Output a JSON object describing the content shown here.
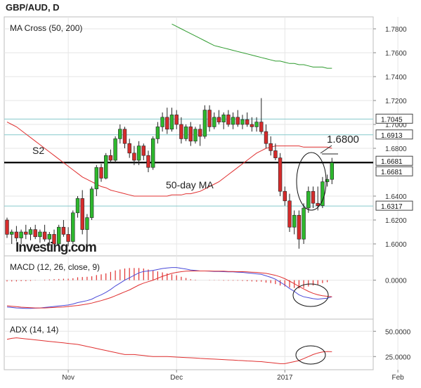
{
  "header": {
    "title": "GBP/AUD, D"
  },
  "colors": {
    "up": "#2db82d",
    "down": "#d62b2b",
    "ma200": "#2e9b2e",
    "ma50": "#e03030",
    "macd_line": "#4a4ad8",
    "signal_line": "#e03030",
    "level_line": "#86c9cc",
    "s2_line": "#000000",
    "grid": "#e6e6e6"
  },
  "x_axis": {
    "labels": [
      {
        "text": "Nov",
        "bar": 13
      },
      {
        "text": "Dec",
        "bar": 36
      },
      {
        "text": "2017",
        "bar": 59
      },
      {
        "text": "Feb",
        "bar": 83
      }
    ]
  },
  "watermark": "Investing.com",
  "annotations": {
    "s2": "S2",
    "target": "1.6800",
    "ma_label": "50-day MA"
  },
  "chart_data": [
    {
      "type": "candlestick",
      "title": "MA Cross (50, 200)",
      "ylim": [
        1.59,
        1.79
      ],
      "y_ticks": [
        "1.7800",
        "1.7600",
        "1.7400",
        "1.7200",
        "1.7000",
        "1.6800",
        "1.6400",
        "1.6200",
        "1.6000"
      ],
      "price_tags": [
        "1.7045",
        "1.6913",
        "1.6681",
        "1.6681",
        "1.6317"
      ],
      "levels": {
        "s2": 1.6681,
        "horizontal": [
          1.7045,
          1.6913,
          1.6317
        ]
      },
      "candles": [
        [
          1.62,
          1.622,
          1.605,
          1.608
        ],
        [
          1.608,
          1.612,
          1.6,
          1.61
        ],
        [
          1.61,
          1.615,
          1.602,
          1.605
        ],
        [
          1.605,
          1.612,
          1.6,
          1.61
        ],
        [
          1.61,
          1.616,
          1.604,
          1.608
        ],
        [
          1.608,
          1.614,
          1.603,
          1.612
        ],
        [
          1.612,
          1.616,
          1.604,
          1.606
        ],
        [
          1.606,
          1.612,
          1.601,
          1.61
        ],
        [
          1.61,
          1.616,
          1.602,
          1.604
        ],
        [
          1.604,
          1.61,
          1.6,
          1.608
        ],
        [
          1.608,
          1.612,
          1.598,
          1.6
        ],
        [
          1.6,
          1.616,
          1.598,
          1.614
        ],
        [
          1.614,
          1.62,
          1.606,
          1.608
        ],
        [
          1.608,
          1.614,
          1.598,
          1.602
        ],
        [
          1.602,
          1.628,
          1.6,
          1.626
        ],
        [
          1.626,
          1.64,
          1.622,
          1.638
        ],
        [
          1.638,
          1.645,
          1.608,
          1.612
        ],
        [
          1.612,
          1.625,
          1.598,
          1.622
        ],
        [
          1.622,
          1.648,
          1.62,
          1.646
        ],
        [
          1.646,
          1.666,
          1.64,
          1.664
        ],
        [
          1.664,
          1.667,
          1.652,
          1.655
        ],
        [
          1.655,
          1.676,
          1.654,
          1.674
        ],
        [
          1.674,
          1.679,
          1.668,
          1.67
        ],
        [
          1.67,
          1.69,
          1.668,
          1.688
        ],
        [
          1.688,
          1.7,
          1.684,
          1.696
        ],
        [
          1.696,
          1.698,
          1.68,
          1.684
        ],
        [
          1.684,
          1.688,
          1.672,
          1.676
        ],
        [
          1.676,
          1.682,
          1.666,
          1.67
        ],
        [
          1.67,
          1.686,
          1.666,
          1.682
        ],
        [
          1.682,
          1.684,
          1.67,
          1.674
        ],
        [
          1.674,
          1.678,
          1.66,
          1.664
        ],
        [
          1.664,
          1.69,
          1.662,
          1.688
        ],
        [
          1.688,
          1.702,
          1.684,
          1.698
        ],
        [
          1.698,
          1.71,
          1.694,
          1.706
        ],
        [
          1.706,
          1.714,
          1.692,
          1.696
        ],
        [
          1.696,
          1.714,
          1.694,
          1.708
        ],
        [
          1.708,
          1.712,
          1.696,
          1.7
        ],
        [
          1.7,
          1.706,
          1.684,
          1.688
        ],
        [
          1.688,
          1.7,
          1.686,
          1.698
        ],
        [
          1.698,
          1.702,
          1.682,
          1.686
        ],
        [
          1.686,
          1.698,
          1.684,
          1.696
        ],
        [
          1.696,
          1.7,
          1.682,
          1.69
        ],
        [
          1.69,
          1.716,
          1.688,
          1.712
        ],
        [
          1.712,
          1.716,
          1.694,
          1.698
        ],
        [
          1.698,
          1.71,
          1.696,
          1.706
        ],
        [
          1.706,
          1.712,
          1.7,
          1.702
        ],
        [
          1.702,
          1.71,
          1.696,
          1.708
        ],
        [
          1.708,
          1.712,
          1.698,
          1.7
        ],
        [
          1.7,
          1.71,
          1.696,
          1.706
        ],
        [
          1.706,
          1.712,
          1.698,
          1.7
        ],
        [
          1.7,
          1.708,
          1.696,
          1.704
        ],
        [
          1.704,
          1.71,
          1.698,
          1.7
        ],
        [
          1.7,
          1.706,
          1.694,
          1.698
        ],
        [
          1.698,
          1.706,
          1.694,
          1.702
        ],
        [
          1.702,
          1.722,
          1.692,
          1.694
        ],
        [
          1.694,
          1.7,
          1.68,
          1.684
        ],
        [
          1.684,
          1.69,
          1.674,
          1.678
        ],
        [
          1.678,
          1.684,
          1.67,
          1.672
        ],
        [
          1.672,
          1.676,
          1.64,
          1.644
        ],
        [
          1.644,
          1.648,
          1.632,
          1.636
        ],
        [
          1.636,
          1.642,
          1.61,
          1.614
        ],
        [
          1.614,
          1.628,
          1.608,
          1.624
        ],
        [
          1.624,
          1.628,
          1.596,
          1.604
        ],
        [
          1.604,
          1.634,
          1.6,
          1.63
        ],
        [
          1.63,
          1.648,
          1.626,
          1.644
        ],
        [
          1.644,
          1.648,
          1.63,
          1.634
        ],
        [
          1.634,
          1.648,
          1.628,
          1.632
        ],
        [
          1.632,
          1.656,
          1.63,
          1.652
        ],
        [
          1.652,
          1.658,
          1.648,
          1.654
        ],
        [
          1.654,
          1.672,
          1.65,
          1.668
        ]
      ],
      "ma50": [
        1.702,
        1.7,
        1.698,
        1.695,
        1.692,
        1.689,
        1.686,
        1.683,
        1.68,
        1.677,
        1.674,
        1.671,
        1.668,
        1.665,
        1.662,
        1.659,
        1.656,
        1.654,
        1.652,
        1.65,
        1.648,
        1.647,
        1.645,
        1.644,
        1.643,
        1.642,
        1.641,
        1.64,
        1.64,
        1.64,
        1.64,
        1.64,
        1.64,
        1.64,
        1.64,
        1.641,
        1.641,
        1.641,
        1.642,
        1.642,
        1.643,
        1.644,
        1.646,
        1.648,
        1.65,
        1.652,
        1.655,
        1.658,
        1.661,
        1.664,
        1.667,
        1.67,
        1.673,
        1.676,
        1.678,
        1.68,
        1.681,
        1.682,
        1.682,
        1.682,
        1.682,
        1.682,
        1.682,
        1.681,
        1.681,
        1.681,
        1.681,
        1.681,
        1.681,
        1.68
      ],
      "ma200": {
        "from_bar": 35,
        "values": [
          1.784,
          1.782,
          1.78,
          1.778,
          1.776,
          1.774,
          1.772,
          1.77,
          1.768,
          1.766,
          1.765,
          1.764,
          1.763,
          1.762,
          1.761,
          1.76,
          1.759,
          1.758,
          1.757,
          1.756,
          1.755,
          1.754,
          1.753,
          1.753,
          1.752,
          1.751,
          1.751,
          1.75,
          1.75,
          1.749,
          1.748,
          1.748,
          1.748,
          1.747,
          1.747
        ]
      }
    },
    {
      "type": "line",
      "title": "MACD (12, 26, close, 9)",
      "ylim": [
        -0.016,
        0.01
      ],
      "y_ticks": [
        "0.0000"
      ],
      "series": [
        {
          "values": [
            -0.011,
            -0.0112,
            -0.0114,
            -0.0115,
            -0.0116,
            -0.0116,
            -0.0115,
            -0.0114,
            -0.0112,
            -0.011,
            -0.0108,
            -0.0106,
            -0.0104,
            -0.0102,
            -0.0098,
            -0.0092,
            -0.0088,
            -0.0084,
            -0.0078,
            -0.0068,
            -0.006,
            -0.005,
            -0.0038,
            -0.0024,
            -0.0012,
            0.0,
            0.001,
            0.002,
            0.003,
            0.0036,
            0.0038,
            0.004,
            0.0044,
            0.0048,
            0.005,
            0.0052,
            0.0052,
            0.0049,
            0.0046,
            0.0042,
            0.004,
            0.0038,
            0.0038,
            0.0037,
            0.0036,
            0.0036,
            0.0035,
            0.0034,
            0.0034,
            0.0033,
            0.0032,
            0.003,
            0.0028,
            0.0026,
            0.0024,
            0.0018,
            0.0012,
            0.0004,
            -0.0008,
            -0.002,
            -0.0034,
            -0.0046,
            -0.006,
            -0.0068,
            -0.0072,
            -0.0076,
            -0.0078,
            -0.0076,
            -0.0074,
            -0.0068
          ]
        },
        {
          "values": [
            -0.0105,
            -0.0107,
            -0.0109,
            -0.0111,
            -0.0112,
            -0.0113,
            -0.0114,
            -0.0114,
            -0.0114,
            -0.0113,
            -0.0112,
            -0.0111,
            -0.011,
            -0.0108,
            -0.0106,
            -0.0104,
            -0.0101,
            -0.0098,
            -0.0094,
            -0.0089,
            -0.0084,
            -0.0078,
            -0.0072,
            -0.0064,
            -0.0056,
            -0.0048,
            -0.004,
            -0.003,
            -0.002,
            -0.0012,
            -0.0006,
            0.0,
            0.0008,
            0.0016,
            0.0022,
            0.0028,
            0.0032,
            0.0035,
            0.0037,
            0.0038,
            0.0038,
            0.0038,
            0.0038,
            0.0038,
            0.0037,
            0.0037,
            0.0037,
            0.0036,
            0.0036,
            0.0035,
            0.0035,
            0.0034,
            0.0033,
            0.0032,
            0.003,
            0.0028,
            0.0024,
            0.002,
            0.0014,
            0.0006,
            -0.0004,
            -0.0014,
            -0.0026,
            -0.0036,
            -0.0046,
            -0.0054,
            -0.006,
            -0.0064,
            -0.0066,
            -0.0068
          ]
        }
      ],
      "histogram": [
        -0.0005,
        -0.0005,
        -0.0005,
        -0.0004,
        -0.0004,
        -0.0003,
        -0.0001,
        0.0,
        0.0002,
        0.0003,
        0.0004,
        0.0005,
        0.0006,
        0.0006,
        0.0008,
        0.0012,
        0.0013,
        0.0014,
        0.0016,
        0.0021,
        0.0024,
        0.0028,
        0.0034,
        0.004,
        0.0044,
        0.0048,
        0.005,
        0.005,
        0.005,
        0.0048,
        0.0044,
        0.004,
        0.0036,
        0.0032,
        0.0028,
        0.0024,
        0.002,
        0.0014,
        0.0009,
        0.0004,
        0.0002,
        0.0,
        0.0,
        -0.0001,
        -0.0001,
        -0.0001,
        -0.0002,
        -0.0002,
        -0.0002,
        -0.0002,
        -0.0003,
        -0.0004,
        -0.0005,
        -0.0006,
        -0.0006,
        -0.001,
        -0.0012,
        -0.0016,
        -0.0022,
        -0.0026,
        -0.003,
        -0.0032,
        -0.0034,
        -0.0032,
        -0.0026,
        -0.0022,
        -0.0018,
        -0.0012,
        -0.0008,
        0.0
      ]
    },
    {
      "type": "line",
      "title": "ADX (14, 14)",
      "ylim": [
        12,
        62
      ],
      "y_ticks": [
        "50.0000",
        "25.0000"
      ],
      "series": [
        {
          "values": [
            42,
            43,
            43.5,
            43,
            42.5,
            42,
            41.5,
            41,
            40.5,
            40,
            39.5,
            39,
            38.5,
            38,
            37.5,
            37,
            36,
            35,
            34,
            33,
            32,
            31,
            30,
            29,
            28,
            27,
            27,
            27,
            26.5,
            26,
            25.5,
            25,
            25,
            25,
            25,
            24.8,
            24.5,
            24.2,
            24,
            23.8,
            23.5,
            23.2,
            23,
            22.7,
            22.5,
            22.3,
            22,
            21.7,
            21.5,
            21.2,
            21,
            20.7,
            20.5,
            20.2,
            20,
            19.5,
            19,
            18.5,
            18,
            18,
            19,
            20,
            21,
            23,
            25,
            27,
            28.5,
            29.5,
            30,
            29.8
          ]
        }
      ]
    }
  ]
}
